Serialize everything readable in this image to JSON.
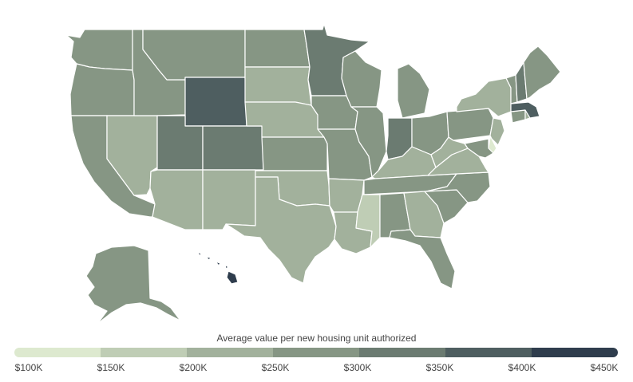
{
  "legend": {
    "title": "Average value per new housing unit authorized",
    "bins": [
      {
        "label": "$100K",
        "color": "#dde9cf"
      },
      {
        "label": "$150K",
        "color": "#bfcdb5"
      },
      {
        "label": "$200K",
        "color": "#a2b19c"
      },
      {
        "label": "$250K",
        "color": "#869684"
      },
      {
        "label": "$300K",
        "color": "#6b7b71"
      },
      {
        "label": "$350K",
        "color": "#4e5e60"
      },
      {
        "label": "$400K",
        "color": "#2f3d4d"
      }
    ],
    "end_label": "$450K"
  },
  "states": {
    "WA": {
      "bin": 3
    },
    "OR": {
      "bin": 3
    },
    "CA": {
      "bin": 3
    },
    "NV": {
      "bin": 2
    },
    "ID": {
      "bin": 3
    },
    "MT": {
      "bin": 3
    },
    "WY": {
      "bin": 5
    },
    "UT": {
      "bin": 4
    },
    "CO": {
      "bin": 4
    },
    "AZ": {
      "bin": 2
    },
    "NM": {
      "bin": 2
    },
    "ND": {
      "bin": 3
    },
    "SD": {
      "bin": 2
    },
    "NE": {
      "bin": 2
    },
    "KS": {
      "bin": 3
    },
    "OK": {
      "bin": 2
    },
    "TX": {
      "bin": 2
    },
    "MN": {
      "bin": 4
    },
    "IA": {
      "bin": 3
    },
    "MO": {
      "bin": 3
    },
    "AR": {
      "bin": 2
    },
    "LA": {
      "bin": 2
    },
    "WI": {
      "bin": 3
    },
    "IL": {
      "bin": 3
    },
    "MI": {
      "bin": 3
    },
    "IN": {
      "bin": 4
    },
    "OH": {
      "bin": 3
    },
    "KY": {
      "bin": 2
    },
    "TN": {
      "bin": 3
    },
    "MS": {
      "bin": 1
    },
    "AL": {
      "bin": 3
    },
    "GA": {
      "bin": 2
    },
    "FL": {
      "bin": 3
    },
    "SC": {
      "bin": 3
    },
    "NC": {
      "bin": 3
    },
    "VA": {
      "bin": 2
    },
    "WV": {
      "bin": 2
    },
    "PA": {
      "bin": 3
    },
    "NY": {
      "bin": 2
    },
    "VT": {
      "bin": 3
    },
    "NH": {
      "bin": 4
    },
    "ME": {
      "bin": 3
    },
    "MA": {
      "bin": 5
    },
    "CT": {
      "bin": 3
    },
    "RI": {
      "bin": 2
    },
    "NJ": {
      "bin": 2
    },
    "DE": {
      "bin": 0
    },
    "MD": {
      "bin": 3
    },
    "AK": {
      "bin": 3
    },
    "HI": {
      "bin": 6
    }
  }
}
